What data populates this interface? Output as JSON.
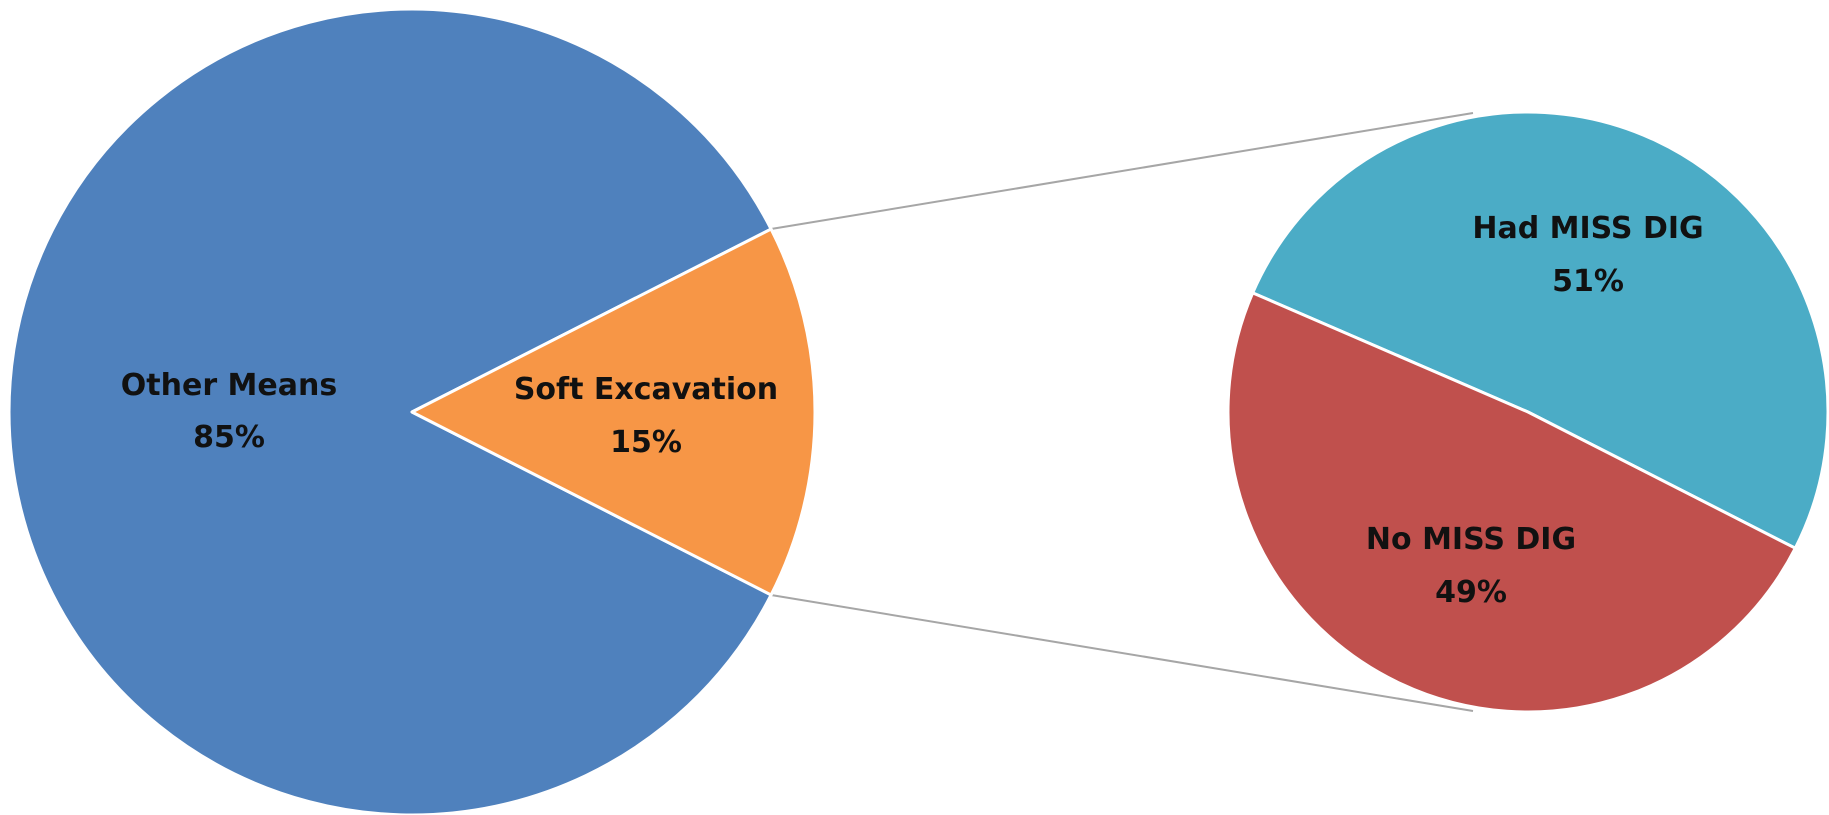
{
  "chart_data": [
    {
      "type": "pie",
      "categories": [
        "Other Means",
        "Soft Excavation"
      ],
      "values": [
        85,
        15
      ],
      "labels": [
        "85%",
        "15%"
      ],
      "colors": [
        "#4F81BD",
        "#F79646"
      ],
      "exploded_category": "Soft Excavation"
    },
    {
      "type": "pie",
      "categories": [
        "Had MISS DIG",
        "No MISS DIG"
      ],
      "values": [
        51,
        49
      ],
      "labels": [
        "51%",
        "49%"
      ],
      "colors": [
        "#4BACC6",
        "#C0504D"
      ]
    }
  ],
  "style": {
    "connector_color": "#A6A6A6",
    "slice_border_color": "#FFFFFF",
    "label_color": "#111111"
  }
}
